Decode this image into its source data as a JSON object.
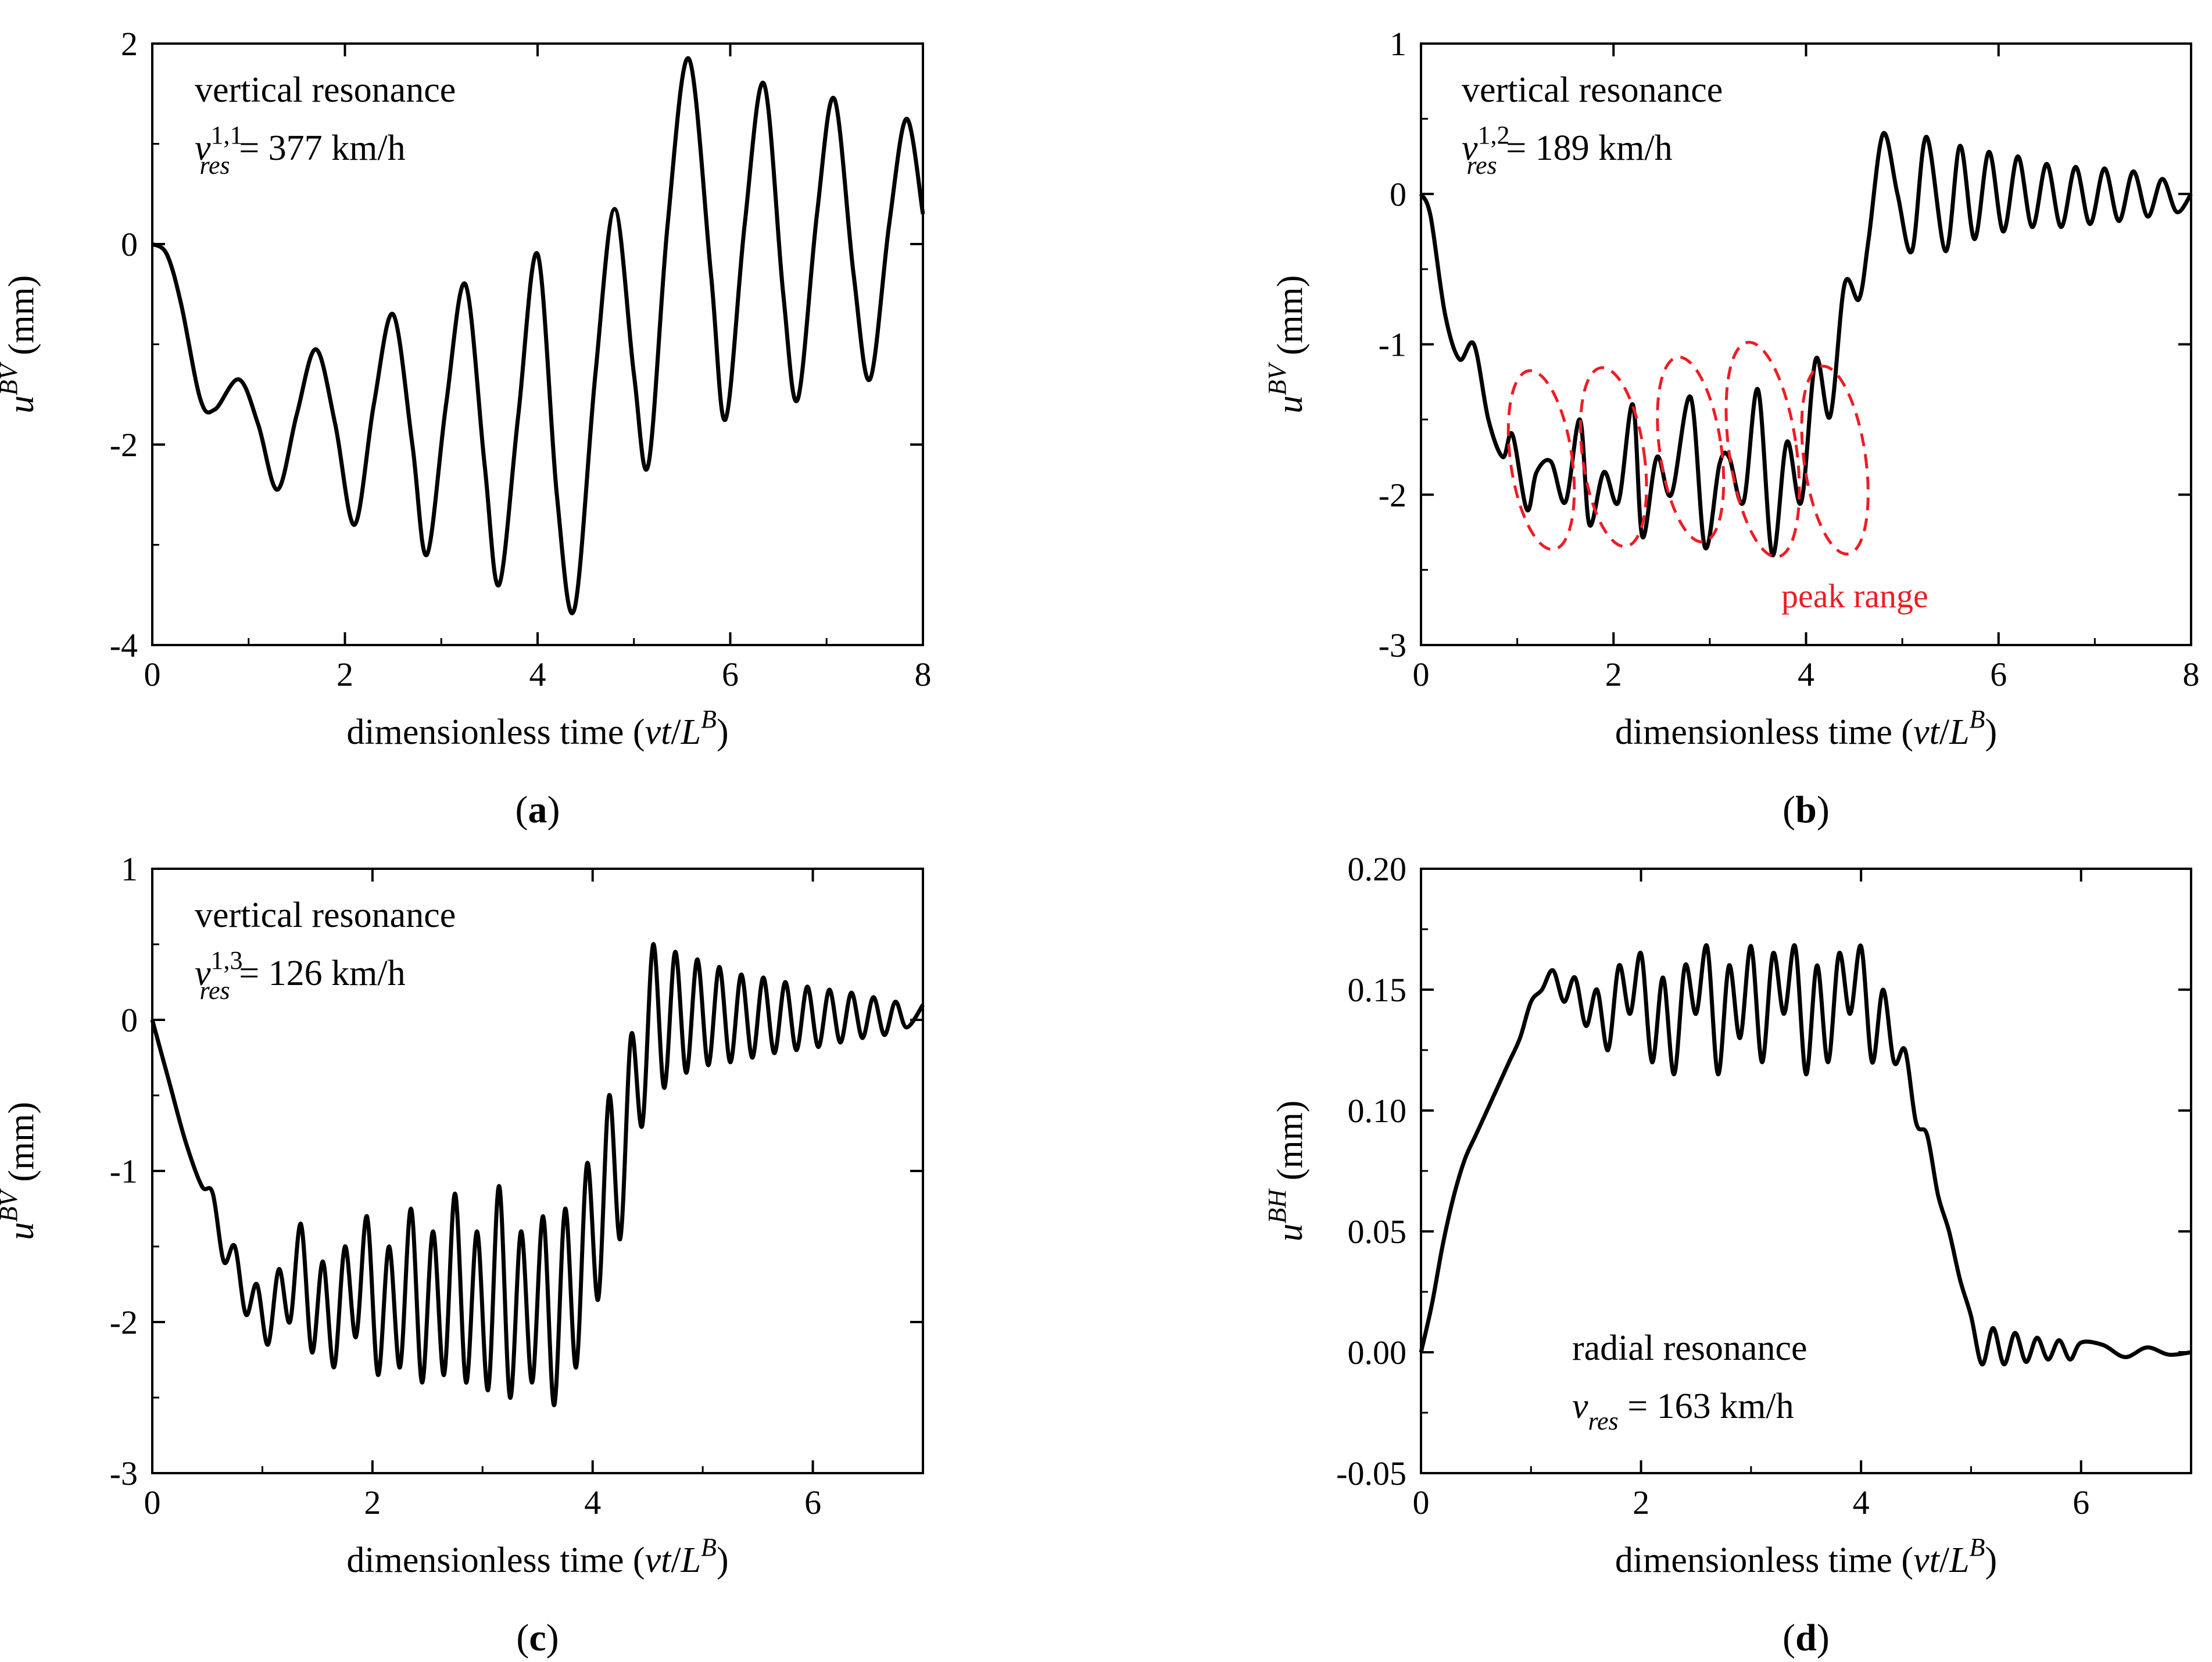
{
  "chart_data": [
    {
      "panel": "a",
      "type": "line",
      "panel_label": "a",
      "xlabel": {
        "main": "dimensionless time (",
        "v": "vt",
        "slash": "/",
        "L": "L",
        "sup": "B",
        "close": ")"
      },
      "ylabel": {
        "u": "u",
        "sup": "BV",
        "unit": " (mm)"
      },
      "xlim": [
        0,
        8
      ],
      "ylim": [
        -4,
        2
      ],
      "xticks": [
        "0",
        "2",
        "4",
        "6",
        "8"
      ],
      "yticks": [
        "-4",
        "-2",
        "0",
        "2"
      ],
      "annotation_lines": [
        {
          "text": "vertical resonance"
        },
        {
          "v": "v",
          "sup": "1,1",
          "sub": "res",
          "rest": " = 377 km/h"
        }
      ],
      "series": [
        {
          "color": "#000000",
          "x": [
            0,
            0.15,
            0.3,
            0.5,
            0.65,
            0.9,
            1.1,
            1.3,
            1.5,
            1.7,
            1.9,
            2.1,
            2.3,
            2.5,
            2.7,
            2.85,
            3.05,
            3.25,
            3.45,
            3.6,
            3.8,
            4.0,
            4.2,
            4.38,
            4.6,
            4.8,
            5.0,
            5.15,
            5.35,
            5.57,
            5.8,
            5.95,
            6.15,
            6.35,
            6.55,
            6.7,
            6.9,
            7.08,
            7.28,
            7.45,
            7.65,
            7.83,
            8.0
          ],
          "y": [
            0,
            -0.1,
            -0.6,
            -1.55,
            -1.65,
            -1.35,
            -1.8,
            -2.45,
            -1.7,
            -1.05,
            -1.8,
            -2.8,
            -1.6,
            -0.7,
            -2.0,
            -3.1,
            -1.6,
            -0.4,
            -2.2,
            -3.4,
            -1.7,
            -0.1,
            -2.5,
            -3.65,
            -1.3,
            0.35,
            -1.3,
            -2.2,
            0.2,
            1.85,
            -0.3,
            -1.75,
            0.2,
            1.6,
            -0.5,
            -1.55,
            0.3,
            1.45,
            -0.3,
            -1.35,
            0.2,
            1.25,
            0.3
          ]
        }
      ]
    },
    {
      "panel": "b",
      "type": "line",
      "panel_label": "b",
      "xlabel": {
        "main": "dimensionless time (",
        "v": "vt",
        "slash": "/",
        "L": "L",
        "sup": "B",
        "close": ")"
      },
      "ylabel": {
        "u": "u",
        "sup": "BV",
        "unit": " (mm)"
      },
      "xlim": [
        0,
        8
      ],
      "ylim": [
        -3,
        1
      ],
      "xticks": [
        "0",
        "2",
        "4",
        "6",
        "8"
      ],
      "yticks": [
        "-3",
        "-2",
        "-1",
        "0",
        "1"
      ],
      "annotation_lines": [
        {
          "text": "vertical resonance"
        },
        {
          "v": "v",
          "sup": "1,2",
          "sub": "res",
          "rest": " = 189 km/h"
        }
      ],
      "peak_note": "peak range",
      "peak_ellipses": [
        {
          "cx": 1.25,
          "cy": -1.77,
          "rx": 0.32,
          "ry": 0.6
        },
        {
          "cx": 2.0,
          "cy": -1.75,
          "rx": 0.32,
          "ry": 0.6
        },
        {
          "cx": 2.8,
          "cy": -1.7,
          "rx": 0.32,
          "ry": 0.62
        },
        {
          "cx": 3.55,
          "cy": -1.7,
          "rx": 0.35,
          "ry": 0.72
        },
        {
          "cx": 4.3,
          "cy": -1.77,
          "rx": 0.32,
          "ry": 0.63
        }
      ],
      "series": [
        {
          "color": "#000000",
          "x": [
            0,
            0.1,
            0.25,
            0.4,
            0.55,
            0.7,
            0.85,
            0.95,
            1.1,
            1.2,
            1.35,
            1.5,
            1.65,
            1.75,
            1.9,
            2.05,
            2.2,
            2.3,
            2.45,
            2.6,
            2.8,
            2.95,
            3.1,
            3.2,
            3.35,
            3.5,
            3.65,
            3.8,
            3.95,
            4.1,
            4.25,
            4.4,
            4.55,
            4.65,
            4.8,
            4.95,
            5.1,
            5.25,
            5.45,
            5.6,
            5.75,
            5.9,
            6.05,
            6.2,
            6.35,
            6.5,
            6.65,
            6.8,
            6.95,
            7.1,
            7.25,
            7.4,
            7.55,
            7.7,
            7.85,
            8.0
          ],
          "y": [
            0,
            -0.15,
            -0.8,
            -1.1,
            -1.0,
            -1.5,
            -1.75,
            -1.6,
            -2.1,
            -1.85,
            -1.78,
            -2.05,
            -1.5,
            -2.2,
            -1.85,
            -2.05,
            -1.4,
            -2.28,
            -1.75,
            -2.0,
            -1.35,
            -2.35,
            -1.8,
            -1.75,
            -2.05,
            -1.3,
            -2.4,
            -1.65,
            -2.05,
            -1.1,
            -1.48,
            -0.6,
            -0.7,
            -0.3,
            0.4,
            0.0,
            -0.38,
            0.38,
            -0.38,
            0.32,
            -0.3,
            0.28,
            -0.25,
            0.25,
            -0.22,
            0.2,
            -0.22,
            0.18,
            -0.2,
            0.17,
            -0.18,
            0.15,
            -0.15,
            0.1,
            -0.12,
            0.0
          ]
        }
      ]
    },
    {
      "panel": "c",
      "type": "line",
      "panel_label": "c",
      "xlabel": {
        "main": "dimensionless time (",
        "v": "vt",
        "slash": "/",
        "L": "L",
        "sup": "B",
        "close": ")"
      },
      "ylabel": {
        "u": "u",
        "sup": "BV",
        "unit": " (mm)"
      },
      "xlim": [
        0,
        7
      ],
      "ylim": [
        -3,
        1
      ],
      "xticks": [
        "0",
        "2",
        "4",
        "6"
      ],
      "yticks": [
        "-3",
        "-2",
        "-1",
        "0",
        "1"
      ],
      "annotation_lines": [
        {
          "text": "vertical resonance"
        },
        {
          "v": "v",
          "sup": "1,3",
          "sub": "res",
          "rest": " = 126 km/h"
        }
      ],
      "series": [
        {
          "color": "#000000",
          "x": [
            0,
            0.15,
            0.3,
            0.45,
            0.55,
            0.65,
            0.75,
            0.85,
            0.95,
            1.05,
            1.15,
            1.25,
            1.35,
            1.45,
            1.55,
            1.65,
            1.75,
            1.85,
            1.95,
            2.05,
            2.15,
            2.25,
            2.35,
            2.45,
            2.55,
            2.65,
            2.75,
            2.85,
            2.95,
            3.05,
            3.15,
            3.25,
            3.35,
            3.45,
            3.55,
            3.65,
            3.75,
            3.85,
            3.95,
            4.05,
            4.15,
            4.25,
            4.35,
            4.45,
            4.55,
            4.65,
            4.75,
            4.85,
            4.95,
            5.05,
            5.15,
            5.25,
            5.35,
            5.45,
            5.55,
            5.65,
            5.75,
            5.85,
            5.95,
            6.05,
            6.15,
            6.25,
            6.35,
            6.45,
            6.55,
            6.65,
            6.75,
            6.85,
            7.0
          ],
          "y": [
            0,
            -0.4,
            -0.8,
            -1.1,
            -1.15,
            -1.6,
            -1.5,
            -1.95,
            -1.75,
            -2.15,
            -1.65,
            -2.0,
            -1.35,
            -2.2,
            -1.6,
            -2.3,
            -1.5,
            -2.1,
            -1.3,
            -2.35,
            -1.5,
            -2.3,
            -1.25,
            -2.4,
            -1.4,
            -2.35,
            -1.15,
            -2.4,
            -1.4,
            -2.45,
            -1.1,
            -2.5,
            -1.4,
            -2.4,
            -1.3,
            -2.55,
            -1.25,
            -2.3,
            -0.95,
            -1.85,
            -0.5,
            -1.45,
            -0.1,
            -0.7,
            0.5,
            -0.45,
            0.45,
            -0.35,
            0.4,
            -0.3,
            0.35,
            -0.28,
            0.3,
            -0.25,
            0.28,
            -0.22,
            0.25,
            -0.2,
            0.22,
            -0.18,
            0.2,
            -0.15,
            0.18,
            -0.12,
            0.15,
            -0.1,
            0.12,
            -0.05,
            0.1
          ]
        }
      ]
    },
    {
      "panel": "d",
      "type": "line",
      "panel_label": "d",
      "xlabel": {
        "main": "dimensionless time (",
        "v": "vt",
        "slash": "/",
        "L": "L",
        "sup": "B",
        "close": ")"
      },
      "ylabel": {
        "u": "u",
        "sup": "BH",
        "unit": " (mm)"
      },
      "xlim": [
        0,
        7
      ],
      "ylim": [
        -0.05,
        0.2
      ],
      "xticks": [
        "0",
        "2",
        "4",
        "6"
      ],
      "yticks": [
        "-0.05",
        "0.00",
        "0.05",
        "0.10",
        "0.15",
        "0.20"
      ],
      "annotation_lines": [
        {
          "text": "radial resonance"
        },
        {
          "v": "v",
          "sup": "",
          "sub": "res",
          "rest": " = 163 km/h"
        }
      ],
      "series": [
        {
          "color": "#000000",
          "x": [
            0,
            0.1,
            0.2,
            0.3,
            0.4,
            0.5,
            0.6,
            0.7,
            0.8,
            0.9,
            1.0,
            1.1,
            1.2,
            1.3,
            1.4,
            1.5,
            1.6,
            1.7,
            1.8,
            1.9,
            2.0,
            2.1,
            2.2,
            2.3,
            2.4,
            2.5,
            2.6,
            2.7,
            2.8,
            2.9,
            3.0,
            3.1,
            3.2,
            3.3,
            3.4,
            3.5,
            3.6,
            3.7,
            3.8,
            3.9,
            4.0,
            4.1,
            4.2,
            4.3,
            4.4,
            4.5,
            4.6,
            4.7,
            4.8,
            4.9,
            5.0,
            5.1,
            5.2,
            5.3,
            5.4,
            5.5,
            5.6,
            5.7,
            5.8,
            5.9,
            6.0,
            6.2,
            6.4,
            6.6,
            6.8,
            7.0
          ],
          "y": [
            0.0,
            0.02,
            0.045,
            0.065,
            0.08,
            0.09,
            0.1,
            0.11,
            0.12,
            0.13,
            0.145,
            0.15,
            0.158,
            0.145,
            0.155,
            0.135,
            0.15,
            0.125,
            0.16,
            0.14,
            0.165,
            0.12,
            0.155,
            0.115,
            0.16,
            0.14,
            0.168,
            0.115,
            0.16,
            0.13,
            0.168,
            0.12,
            0.165,
            0.14,
            0.168,
            0.115,
            0.16,
            0.12,
            0.165,
            0.14,
            0.168,
            0.12,
            0.15,
            0.12,
            0.125,
            0.095,
            0.09,
            0.065,
            0.05,
            0.03,
            0.015,
            -0.005,
            0.01,
            -0.005,
            0.008,
            -0.004,
            0.006,
            -0.003,
            0.005,
            -0.003,
            0.004,
            0.003,
            -0.002,
            0.002,
            -0.001,
            0.0
          ]
        }
      ]
    }
  ]
}
